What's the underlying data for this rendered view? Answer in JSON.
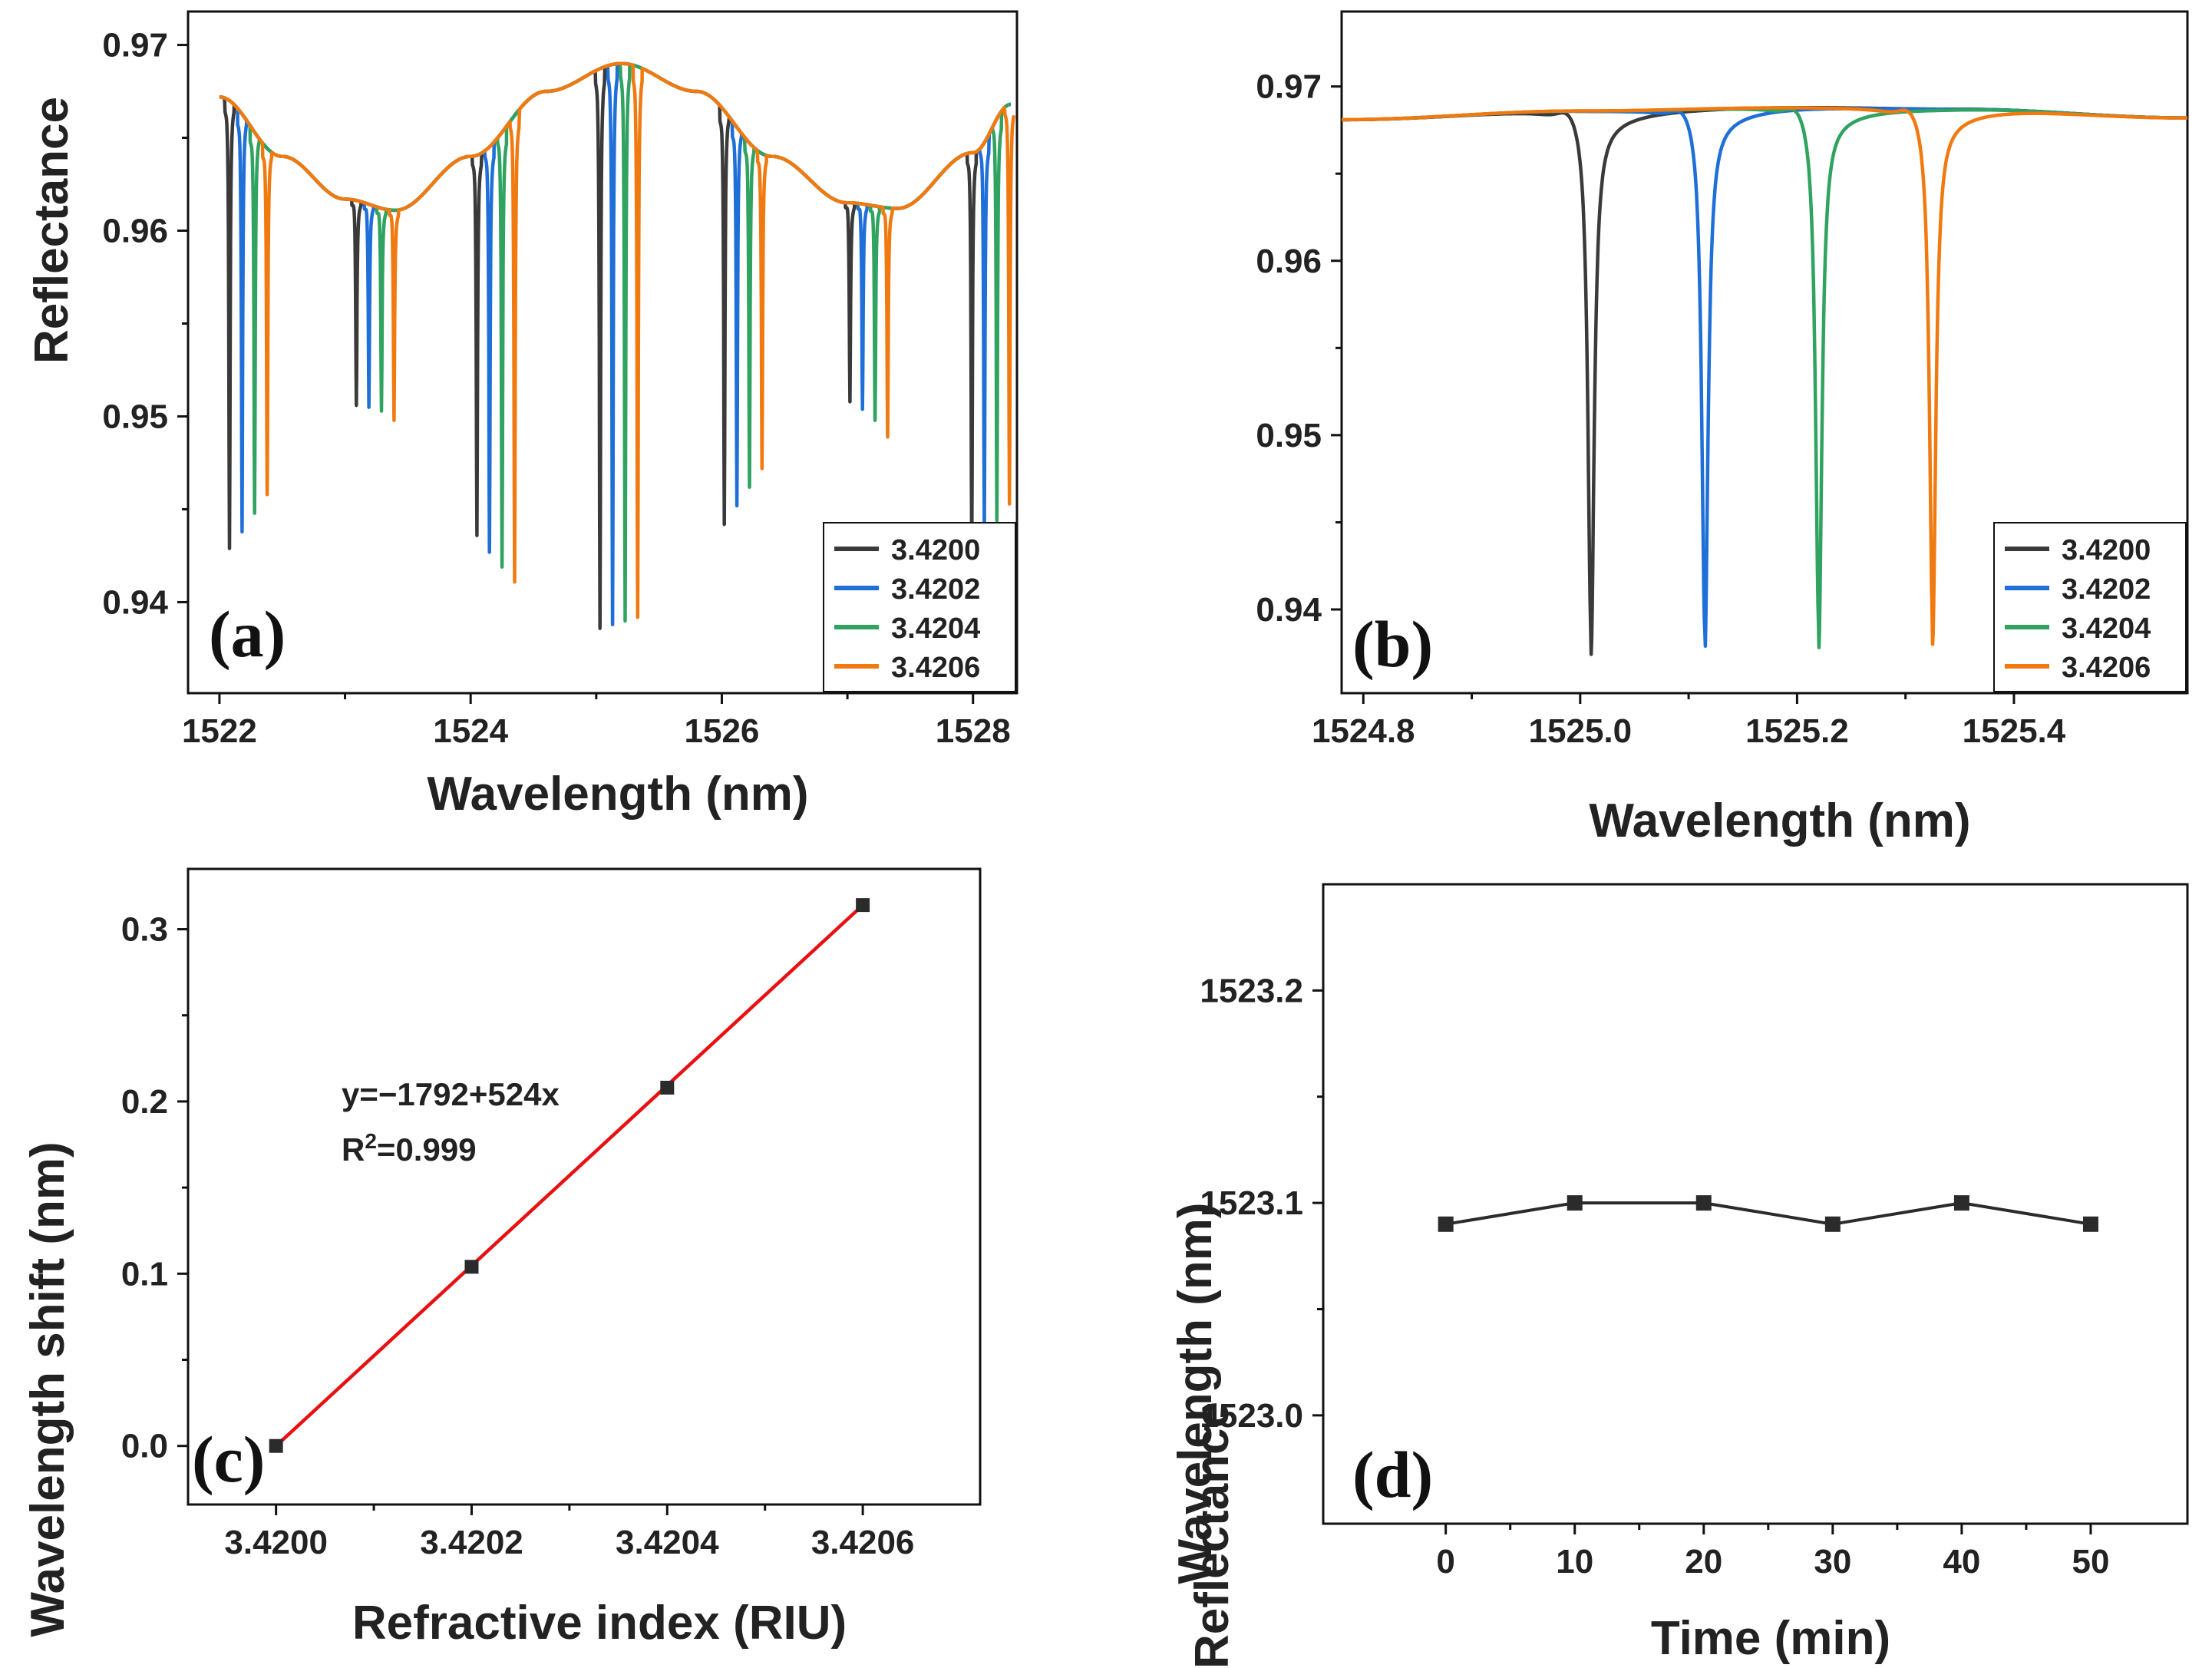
{
  "colors": {
    "s3.4200": "#3a3a3a",
    "s3.4202": "#1f6fd8",
    "s3.4204": "#2fa35f",
    "s3.4206": "#f07a10",
    "fit_line": "#e81010",
    "marker": "#2b2b2b",
    "axis": "#111111"
  },
  "chart_data": [
    {
      "panel": "a",
      "panel_label": "(a)",
      "type": "line",
      "title": "",
      "xlabel": "Wavelength (nm)",
      "ylabel": "Reflectance",
      "xlim": [
        1521.75,
        1528.35
      ],
      "ylim": [
        0.9351,
        0.9718
      ],
      "xticks": [
        1522,
        1524,
        1526,
        1528
      ],
      "xtick_labels": [
        "1522",
        "1524",
        "1526",
        "1528"
      ],
      "yticks": [
        0.94,
        0.95,
        0.96,
        0.97
      ],
      "ytick_labels": [
        "0.94",
        "0.95",
        "0.96",
        "0.97"
      ],
      "legend_position": "bottom-right",
      "baseline": {
        "description": "shared envelope (all series)",
        "x": [
          1522.0,
          1522.5,
          1523.0,
          1523.4,
          1524.0,
          1524.6,
          1525.2,
          1525.8,
          1526.4,
          1527.0,
          1527.4,
          1528.0,
          1528.3
        ],
        "y": [
          0.9672,
          0.964,
          0.9617,
          0.9611,
          0.964,
          0.9675,
          0.969,
          0.9675,
          0.964,
          0.9615,
          0.9612,
          0.9642,
          0.9668
        ]
      },
      "series": [
        {
          "name": "3.4200",
          "dips": [
            {
              "x": 1522.08,
              "min": 0.9428
            },
            {
              "x": 1523.09,
              "min": 0.9505
            },
            {
              "x": 1524.05,
              "min": 0.9435
            },
            {
              "x": 1525.03,
              "min": 0.9385
            },
            {
              "x": 1526.02,
              "min": 0.9441
            },
            {
              "x": 1527.02,
              "min": 0.9507
            },
            {
              "x": 1527.99,
              "min": 0.9425
            }
          ]
        },
        {
          "name": "3.4202",
          "dips": [
            {
              "x": 1522.18,
              "min": 0.9437
            },
            {
              "x": 1523.19,
              "min": 0.9504
            },
            {
              "x": 1524.15,
              "min": 0.9426
            },
            {
              "x": 1525.13,
              "min": 0.9387
            },
            {
              "x": 1526.12,
              "min": 0.9451
            },
            {
              "x": 1527.12,
              "min": 0.9503
            },
            {
              "x": 1528.09,
              "min": 0.9434
            }
          ]
        },
        {
          "name": "3.4204",
          "dips": [
            {
              "x": 1522.28,
              "min": 0.9447
            },
            {
              "x": 1523.29,
              "min": 0.9502
            },
            {
              "x": 1524.25,
              "min": 0.9418
            },
            {
              "x": 1525.23,
              "min": 0.9389
            },
            {
              "x": 1526.22,
              "min": 0.9461
            },
            {
              "x": 1527.22,
              "min": 0.9497
            },
            {
              "x": 1528.19,
              "min": 0.9443
            }
          ]
        },
        {
          "name": "3.4206",
          "dips": [
            {
              "x": 1522.38,
              "min": 0.9457
            },
            {
              "x": 1523.39,
              "min": 0.9497
            },
            {
              "x": 1524.35,
              "min": 0.941
            },
            {
              "x": 1525.33,
              "min": 0.9391
            },
            {
              "x": 1526.32,
              "min": 0.9471
            },
            {
              "x": 1527.32,
              "min": 0.9488
            },
            {
              "x": 1528.29,
              "min": 0.9452
            }
          ]
        }
      ]
    },
    {
      "panel": "b",
      "panel_label": "(b)",
      "type": "line",
      "title": "",
      "xlabel": "Wavelength (nm)",
      "ylabel": "Reflectance",
      "xlim": [
        1524.78,
        1525.56
      ],
      "ylim": [
        0.9352,
        0.9743
      ],
      "xticks": [
        1524.8,
        1525.0,
        1525.2,
        1525.4
      ],
      "xtick_labels": [
        "1524.8",
        "1525.0",
        "1525.2",
        "1525.4"
      ],
      "yticks": [
        0.94,
        0.95,
        0.96,
        0.97
      ],
      "ytick_labels": [
        "0.94",
        "0.95",
        "0.96",
        "0.97"
      ],
      "legend_position": "bottom-right",
      "baseline": {
        "x": [
          1524.78,
          1525.0,
          1525.2,
          1525.35,
          1525.56
        ],
        "y": [
          0.9681,
          0.9686,
          0.9688,
          0.9687,
          0.9682
        ]
      },
      "series": [
        {
          "name": "3.4200",
          "dip_x": 1525.01,
          "dip_min": 0.9386
        },
        {
          "name": "3.4202",
          "dip_x": 1525.115,
          "dip_min": 0.9387
        },
        {
          "name": "3.4204",
          "dip_x": 1525.22,
          "dip_min": 0.9389
        },
        {
          "name": "3.4206",
          "dip_x": 1525.325,
          "dip_min": 0.9392
        }
      ]
    },
    {
      "panel": "c",
      "panel_label": "(c)",
      "type": "scatter",
      "title": "",
      "xlabel": "Refractive index (RIU)",
      "ylabel": "Wavelength shift (nm)",
      "xlim": [
        3.41991,
        3.42072
      ],
      "ylim": [
        -0.034,
        0.335
      ],
      "xticks": [
        3.42,
        3.4202,
        3.4204,
        3.4206
      ],
      "xtick_labels": [
        "3.4200",
        "3.4202",
        "3.4204",
        "3.4206"
      ],
      "yticks": [
        0.0,
        0.1,
        0.2,
        0.3
      ],
      "ytick_labels": [
        "0.0",
        "0.1",
        "0.2",
        "0.3"
      ],
      "x": [
        3.42,
        3.4202,
        3.4204,
        3.4206
      ],
      "y": [
        0.0,
        0.104,
        0.208,
        0.314
      ],
      "fit": {
        "x": [
          3.42,
          3.4206
        ],
        "y": [
          0.0,
          0.314
        ]
      },
      "annotation_eq": "y=−1792+524x",
      "annotation_r2_prefix": "R",
      "annotation_r2_sup": "2",
      "annotation_r2_rest": "=0.999"
    },
    {
      "panel": "d",
      "panel_label": "(d)",
      "type": "line",
      "title": "",
      "xlabel": "Time (min)",
      "ylabel": "Wavelength (nm)",
      "xlim": [
        -9.5,
        57.5
      ],
      "ylim": [
        1522.949,
        1523.25
      ],
      "xticks": [
        0,
        10,
        20,
        30,
        40,
        50
      ],
      "xtick_labels": [
        "0",
        "10",
        "20",
        "30",
        "40",
        "50"
      ],
      "yticks": [
        1523.0,
        1523.1,
        1523.2
      ],
      "ytick_labels": [
        "1523.0",
        "1523.1",
        "1523.2"
      ],
      "x": [
        0,
        10,
        20,
        30,
        40,
        50
      ],
      "y": [
        1523.09,
        1523.1,
        1523.1,
        1523.09,
        1523.1,
        1523.09
      ]
    }
  ]
}
